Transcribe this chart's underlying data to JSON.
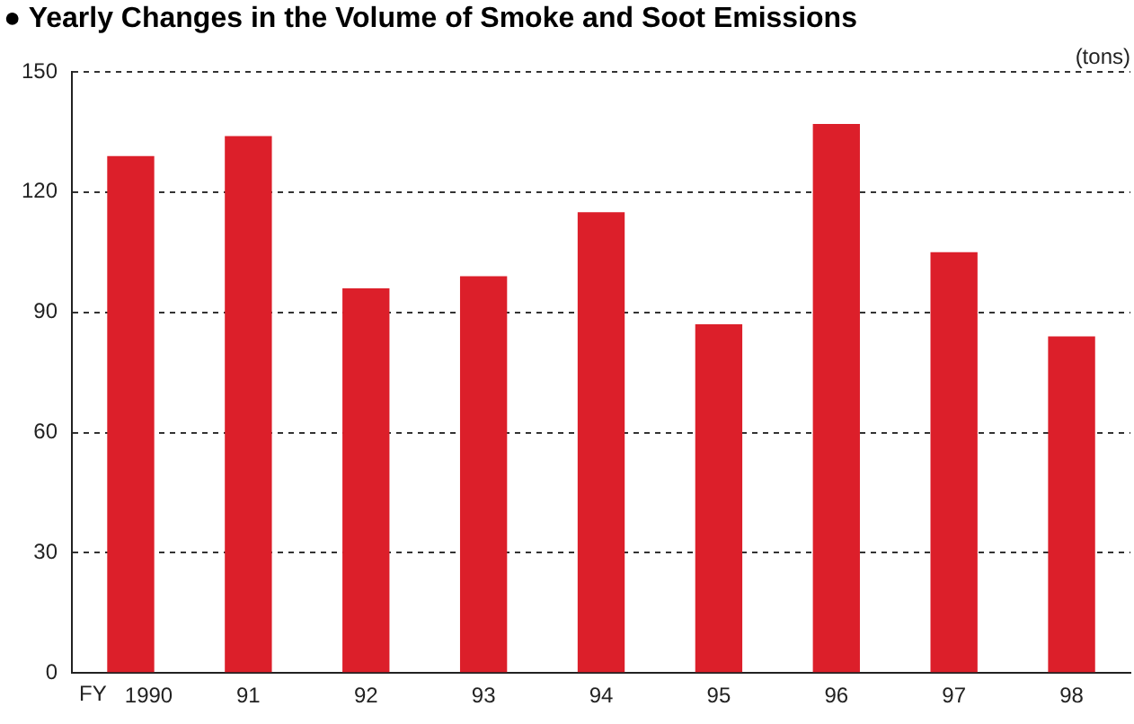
{
  "chart_data": {
    "type": "bar",
    "title": "● Yearly Changes in the Volume of Smoke and Soot Emissions",
    "xlabel": "FY",
    "ylabel": "(tons)",
    "categories": [
      "1990",
      "91",
      "92",
      "93",
      "94",
      "95",
      "96",
      "97",
      "98"
    ],
    "values": [
      129,
      134,
      96,
      99,
      115,
      87,
      137,
      105,
      84
    ],
    "color": "#dc1f2a",
    "ylim": [
      0,
      150
    ],
    "yticks": [
      0,
      30,
      60,
      90,
      120,
      150
    ],
    "grid": "y"
  }
}
